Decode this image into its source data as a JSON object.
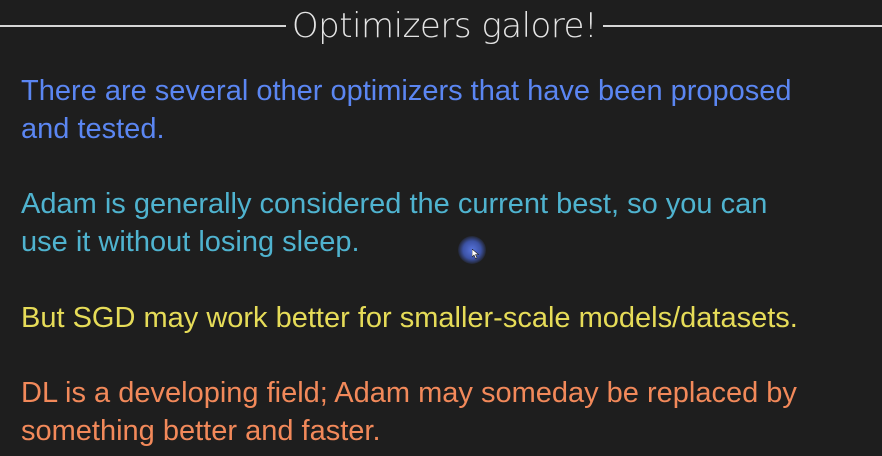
{
  "slide": {
    "title": "Optimizers galore!",
    "paragraphs": [
      {
        "lines": [
          "There are several other optimizers that have been proposed",
          "and tested."
        ],
        "color": "#5b86f2"
      },
      {
        "lines": [
          "Adam is generally considered the current best, so you can",
          "use it without losing sleep."
        ],
        "color": "#4fb3cf"
      },
      {
        "lines": [
          "But SGD may work better for smaller-scale models/datasets."
        ],
        "color": "#e6dc58"
      },
      {
        "lines": [
          "DL is a developing field; Adam may someday be replaced by",
          "something better and faster."
        ],
        "color": "#f2895a"
      }
    ]
  },
  "colors": {
    "background": "#1e1e1e",
    "title": "#e4e4e4",
    "cursor_highlight": "#5a78e6"
  },
  "icons": {
    "cursor": "mouse-pointer-icon"
  }
}
